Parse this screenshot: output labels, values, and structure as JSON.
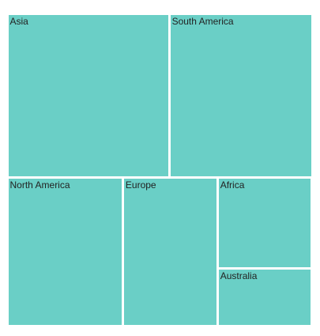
{
  "chart_data": {
    "type": "treemap",
    "title": "",
    "fill_color": "#6acfc6",
    "label_color": "#222222",
    "border_color": "#ffffff",
    "items": [
      {
        "label": "Asia",
        "value": 17000000
      },
      {
        "label": "South America",
        "value": 15000000
      },
      {
        "label": "North America",
        "value": 11000000
      },
      {
        "label": "Europe",
        "value": 9000000
      },
      {
        "label": "Africa",
        "value": 5500000
      },
      {
        "label": "Australia",
        "value": 3500000
      }
    ]
  }
}
